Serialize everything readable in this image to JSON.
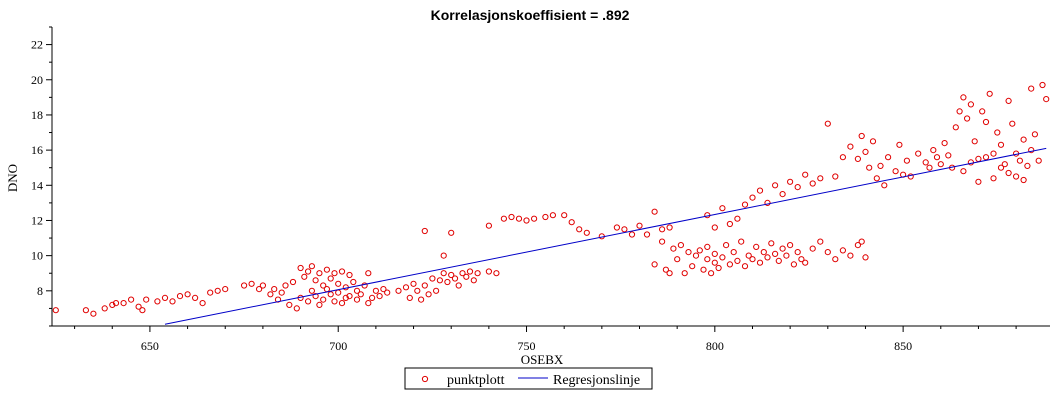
{
  "chart_data": {
    "type": "scatter",
    "title": "Korrelasjonskoeffisient =  .892",
    "xlabel": "OSEBX",
    "ylabel": "DNO",
    "xlim": [
      624,
      889
    ],
    "ylim": [
      6,
      23
    ],
    "x_ticks": [
      650,
      700,
      750,
      800,
      850
    ],
    "y_ticks": [
      8,
      10,
      12,
      14,
      16,
      18,
      20,
      22
    ],
    "grid": false,
    "legend_position": "bottom-center",
    "colors": {
      "scatter": "#e00000",
      "line": "#0000c8"
    },
    "series": [
      {
        "name": "punktplott",
        "kind": "scatter",
        "points": [
          [
            625,
            6.9
          ],
          [
            633,
            6.9
          ],
          [
            635,
            6.7
          ],
          [
            638,
            7.0
          ],
          [
            640,
            7.2
          ],
          [
            641,
            7.3
          ],
          [
            643,
            7.3
          ],
          [
            645,
            7.5
          ],
          [
            647,
            7.1
          ],
          [
            648,
            6.9
          ],
          [
            649,
            7.5
          ],
          [
            652,
            7.4
          ],
          [
            654,
            7.6
          ],
          [
            656,
            7.4
          ],
          [
            658,
            7.7
          ],
          [
            660,
            7.8
          ],
          [
            662,
            7.6
          ],
          [
            664,
            7.3
          ],
          [
            666,
            7.9
          ],
          [
            668,
            8.0
          ],
          [
            670,
            8.1
          ],
          [
            675,
            8.3
          ],
          [
            677,
            8.4
          ],
          [
            679,
            8.1
          ],
          [
            680,
            8.3
          ],
          [
            682,
            7.8
          ],
          [
            683,
            8.1
          ],
          [
            684,
            7.5
          ],
          [
            685,
            7.9
          ],
          [
            686,
            8.3
          ],
          [
            687,
            7.2
          ],
          [
            688,
            8.5
          ],
          [
            689,
            7.0
          ],
          [
            690,
            7.6
          ],
          [
            690,
            9.3
          ],
          [
            691,
            8.8
          ],
          [
            692,
            7.4
          ],
          [
            692,
            9.1
          ],
          [
            693,
            8.0
          ],
          [
            693,
            9.4
          ],
          [
            694,
            7.7
          ],
          [
            694,
            8.6
          ],
          [
            695,
            7.2
          ],
          [
            695,
            9.0
          ],
          [
            696,
            8.3
          ],
          [
            696,
            7.5
          ],
          [
            697,
            9.2
          ],
          [
            697,
            8.1
          ],
          [
            698,
            7.8
          ],
          [
            698,
            8.7
          ],
          [
            699,
            7.4
          ],
          [
            699,
            9.0
          ],
          [
            700,
            7.9
          ],
          [
            700,
            8.4
          ],
          [
            701,
            7.3
          ],
          [
            701,
            9.1
          ],
          [
            702,
            8.2
          ],
          [
            702,
            7.6
          ],
          [
            703,
            8.9
          ],
          [
            703,
            7.7
          ],
          [
            704,
            8.5
          ],
          [
            705,
            7.5
          ],
          [
            705,
            8.0
          ],
          [
            706,
            7.8
          ],
          [
            707,
            8.3
          ],
          [
            708,
            7.3
          ],
          [
            708,
            9.0
          ],
          [
            709,
            7.6
          ],
          [
            710,
            8.0
          ],
          [
            711,
            7.7
          ],
          [
            712,
            8.1
          ],
          [
            713,
            7.9
          ],
          [
            716,
            8.0
          ],
          [
            718,
            8.2
          ],
          [
            719,
            7.6
          ],
          [
            720,
            8.4
          ],
          [
            721,
            8.0
          ],
          [
            722,
            7.5
          ],
          [
            723,
            8.3
          ],
          [
            724,
            7.8
          ],
          [
            725,
            8.7
          ],
          [
            726,
            8.0
          ],
          [
            727,
            8.6
          ],
          [
            728,
            9.0
          ],
          [
            729,
            8.5
          ],
          [
            730,
            8.9
          ],
          [
            731,
            8.7
          ],
          [
            732,
            8.3
          ],
          [
            733,
            9.0
          ],
          [
            734,
            8.8
          ],
          [
            735,
            9.1
          ],
          [
            736,
            8.6
          ],
          [
            737,
            9.0
          ],
          [
            740,
            9.1
          ],
          [
            742,
            9.0
          ],
          [
            723,
            11.4
          ],
          [
            728,
            10.0
          ],
          [
            730,
            11.3
          ],
          [
            740,
            11.7
          ],
          [
            744,
            12.1
          ],
          [
            746,
            12.2
          ],
          [
            748,
            12.1
          ],
          [
            750,
            12.0
          ],
          [
            752,
            12.1
          ],
          [
            755,
            12.2
          ],
          [
            757,
            12.3
          ],
          [
            760,
            12.3
          ],
          [
            762,
            11.9
          ],
          [
            764,
            11.5
          ],
          [
            766,
            11.3
          ],
          [
            770,
            11.1
          ],
          [
            774,
            11.6
          ],
          [
            776,
            11.5
          ],
          [
            778,
            11.2
          ],
          [
            780,
            11.7
          ],
          [
            782,
            11.2
          ],
          [
            784,
            12.5
          ],
          [
            786,
            11.5
          ],
          [
            788,
            11.6
          ],
          [
            784,
            9.5
          ],
          [
            786,
            10.8
          ],
          [
            787,
            9.2
          ],
          [
            788,
            9.0
          ],
          [
            789,
            10.4
          ],
          [
            790,
            9.8
          ],
          [
            791,
            10.6
          ],
          [
            792,
            9.0
          ],
          [
            793,
            10.2
          ],
          [
            794,
            9.4
          ],
          [
            795,
            10.0
          ],
          [
            796,
            10.3
          ],
          [
            797,
            9.2
          ],
          [
            798,
            9.8
          ],
          [
            798,
            10.5
          ],
          [
            799,
            9.0
          ],
          [
            800,
            9.6
          ],
          [
            800,
            10.1
          ],
          [
            801,
            9.3
          ],
          [
            802,
            9.9
          ],
          [
            803,
            10.6
          ],
          [
            804,
            9.5
          ],
          [
            805,
            10.2
          ],
          [
            806,
            9.7
          ],
          [
            807,
            10.8
          ],
          [
            808,
            9.4
          ],
          [
            809,
            10.0
          ],
          [
            810,
            9.8
          ],
          [
            811,
            10.5
          ],
          [
            812,
            9.6
          ],
          [
            813,
            10.2
          ],
          [
            814,
            9.9
          ],
          [
            815,
            10.7
          ],
          [
            816,
            10.1
          ],
          [
            817,
            9.7
          ],
          [
            818,
            10.4
          ],
          [
            819,
            10.0
          ],
          [
            820,
            10.6
          ],
          [
            821,
            9.5
          ],
          [
            822,
            10.2
          ],
          [
            823,
            9.8
          ],
          [
            824,
            9.6
          ],
          [
            826,
            10.4
          ],
          [
            828,
            10.8
          ],
          [
            830,
            10.2
          ],
          [
            832,
            9.8
          ],
          [
            834,
            10.3
          ],
          [
            836,
            10.0
          ],
          [
            838,
            10.6
          ],
          [
            839,
            10.8
          ],
          [
            840,
            9.9
          ],
          [
            798,
            12.3
          ],
          [
            800,
            11.6
          ],
          [
            802,
            12.7
          ],
          [
            804,
            11.8
          ],
          [
            806,
            12.1
          ],
          [
            808,
            12.9
          ],
          [
            810,
            13.3
          ],
          [
            812,
            13.7
          ],
          [
            814,
            13.0
          ],
          [
            816,
            14.0
          ],
          [
            818,
            13.5
          ],
          [
            820,
            14.2
          ],
          [
            822,
            13.9
          ],
          [
            824,
            14.6
          ],
          [
            826,
            14.1
          ],
          [
            828,
            14.4
          ],
          [
            830,
            17.5
          ],
          [
            832,
            14.5
          ],
          [
            834,
            15.6
          ],
          [
            836,
            16.2
          ],
          [
            838,
            15.5
          ],
          [
            839,
            16.8
          ],
          [
            840,
            15.9
          ],
          [
            841,
            15.0
          ],
          [
            842,
            16.5
          ],
          [
            843,
            14.4
          ],
          [
            844,
            15.1
          ],
          [
            845,
            14.0
          ],
          [
            846,
            15.6
          ],
          [
            848,
            14.8
          ],
          [
            849,
            16.3
          ],
          [
            850,
            14.6
          ],
          [
            851,
            15.4
          ],
          [
            852,
            14.5
          ],
          [
            854,
            15.8
          ],
          [
            856,
            15.3
          ],
          [
            857,
            15.0
          ],
          [
            858,
            16.0
          ],
          [
            859,
            15.6
          ],
          [
            860,
            15.2
          ],
          [
            861,
            16.4
          ],
          [
            862,
            15.7
          ],
          [
            863,
            15.0
          ],
          [
            864,
            17.3
          ],
          [
            865,
            18.2
          ],
          [
            866,
            19.0
          ],
          [
            867,
            17.8
          ],
          [
            868,
            18.6
          ],
          [
            869,
            16.5
          ],
          [
            870,
            15.5
          ],
          [
            871,
            18.2
          ],
          [
            872,
            17.6
          ],
          [
            873,
            19.2
          ],
          [
            874,
            15.8
          ],
          [
            875,
            17.0
          ],
          [
            876,
            16.3
          ],
          [
            877,
            15.2
          ],
          [
            878,
            18.8
          ],
          [
            879,
            17.5
          ],
          [
            880,
            14.5
          ],
          [
            881,
            15.4
          ],
          [
            882,
            16.6
          ],
          [
            883,
            15.1
          ],
          [
            884,
            19.5
          ],
          [
            885,
            16.9
          ],
          [
            886,
            15.4
          ],
          [
            887,
            19.7
          ],
          [
            888,
            18.9
          ],
          [
            866,
            14.8
          ],
          [
            868,
            15.3
          ],
          [
            870,
            14.2
          ],
          [
            872,
            15.6
          ],
          [
            874,
            14.4
          ],
          [
            876,
            15.0
          ],
          [
            878,
            14.7
          ],
          [
            880,
            15.8
          ],
          [
            882,
            14.3
          ],
          [
            884,
            16.0
          ]
        ]
      },
      {
        "name": "Regresjonslinje",
        "kind": "line",
        "points": [
          [
            654,
            6.1
          ],
          [
            888,
            16.1
          ]
        ]
      }
    ]
  }
}
